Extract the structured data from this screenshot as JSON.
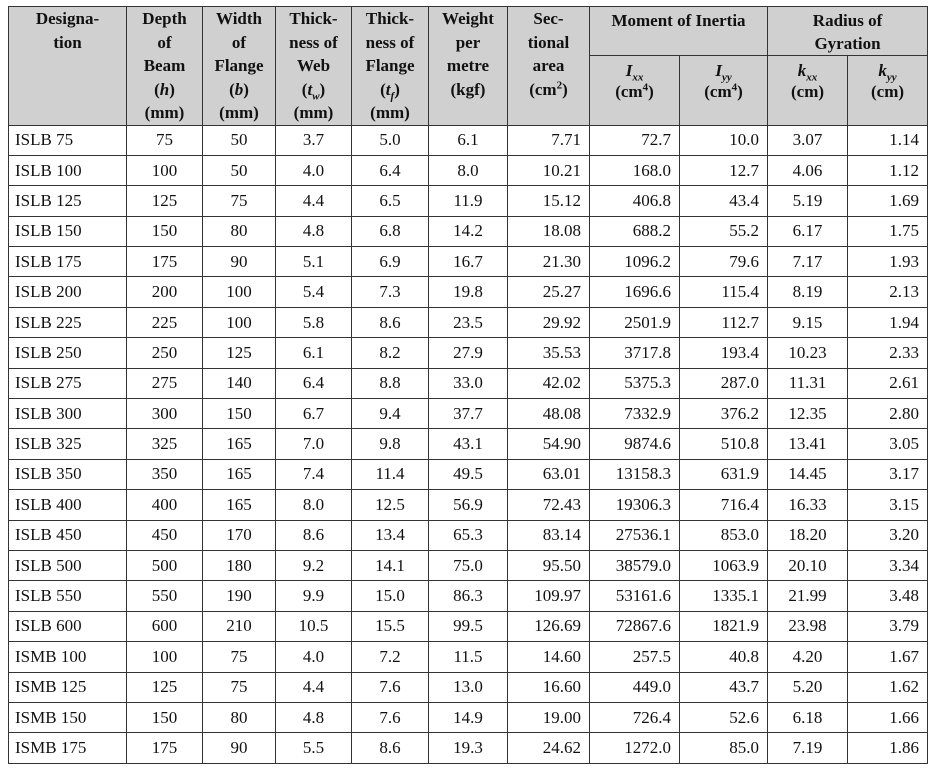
{
  "header": {
    "designation": [
      "Designa-",
      "tion"
    ],
    "depth": [
      "Depth",
      "of",
      "Beam"
    ],
    "depth_sym": "h",
    "depth_unit": "(mm)",
    "width": [
      "Width",
      "of",
      "Flange"
    ],
    "width_sym": "b",
    "width_unit": "(mm)",
    "web": [
      "Thick-",
      "ness of",
      "Web"
    ],
    "web_sym": "t",
    "web_sub": "w",
    "web_unit": "(mm)",
    "flange": [
      "Thick-",
      "ness of",
      "Flange"
    ],
    "flange_sym": "t",
    "flange_sub": "f",
    "flange_unit": "(mm)",
    "weight": [
      "Weight",
      "per",
      "metre",
      "(kgf)"
    ],
    "area": [
      "Sec-",
      "tional",
      "area"
    ],
    "area_unit": "(cm",
    "area_exp": "2",
    "moment_title": "Moment of Inertia",
    "ixx_sym": "I",
    "ixx_sub": "xx",
    "iyy_sym": "I",
    "iyy_sub": "yy",
    "moment_unit": "(cm",
    "moment_exp": "4",
    "radius_title": [
      "Radius of",
      "Gyration"
    ],
    "kxx_sym": "k",
    "kxx_sub": "xx",
    "kyy_sym": "k",
    "kyy_sub": "yy",
    "radius_unit": "(cm)"
  },
  "rows": [
    [
      "ISLB 75",
      "75",
      "50",
      "3.7",
      "5.0",
      "6.1",
      "7.71",
      "72.7",
      "10.0",
      "3.07",
      "1.14"
    ],
    [
      "ISLB 100",
      "100",
      "50",
      "4.0",
      "6.4",
      "8.0",
      "10.21",
      "168.0",
      "12.7",
      "4.06",
      "1.12"
    ],
    [
      "ISLB 125",
      "125",
      "75",
      "4.4",
      "6.5",
      "11.9",
      "15.12",
      "406.8",
      "43.4",
      "5.19",
      "1.69"
    ],
    [
      "ISLB 150",
      "150",
      "80",
      "4.8",
      "6.8",
      "14.2",
      "18.08",
      "688.2",
      "55.2",
      "6.17",
      "1.75"
    ],
    [
      "ISLB 175",
      "175",
      "90",
      "5.1",
      "6.9",
      "16.7",
      "21.30",
      "1096.2",
      "79.6",
      "7.17",
      "1.93"
    ],
    [
      "ISLB 200",
      "200",
      "100",
      "5.4",
      "7.3",
      "19.8",
      "25.27",
      "1696.6",
      "115.4",
      "8.19",
      "2.13"
    ],
    [
      "ISLB 225",
      "225",
      "100",
      "5.8",
      "8.6",
      "23.5",
      "29.92",
      "2501.9",
      "112.7",
      "9.15",
      "1.94"
    ],
    [
      "ISLB 250",
      "250",
      "125",
      "6.1",
      "8.2",
      "27.9",
      "35.53",
      "3717.8",
      "193.4",
      "10.23",
      "2.33"
    ],
    [
      "ISLB 275",
      "275",
      "140",
      "6.4",
      "8.8",
      "33.0",
      "42.02",
      "5375.3",
      "287.0",
      "11.31",
      "2.61"
    ],
    [
      "ISLB 300",
      "300",
      "150",
      "6.7",
      "9.4",
      "37.7",
      "48.08",
      "7332.9",
      "376.2",
      "12.35",
      "2.80"
    ],
    [
      "ISLB 325",
      "325",
      "165",
      "7.0",
      "9.8",
      "43.1",
      "54.90",
      "9874.6",
      "510.8",
      "13.41",
      "3.05"
    ],
    [
      "ISLB 350",
      "350",
      "165",
      "7.4",
      "11.4",
      "49.5",
      "63.01",
      "13158.3",
      "631.9",
      "14.45",
      "3.17"
    ],
    [
      "ISLB 400",
      "400",
      "165",
      "8.0",
      "12.5",
      "56.9",
      "72.43",
      "19306.3",
      "716.4",
      "16.33",
      "3.15"
    ],
    [
      "ISLB 450",
      "450",
      "170",
      "8.6",
      "13.4",
      "65.3",
      "83.14",
      "27536.1",
      "853.0",
      "18.20",
      "3.20"
    ],
    [
      "ISLB 500",
      "500",
      "180",
      "9.2",
      "14.1",
      "75.0",
      "95.50",
      "38579.0",
      "1063.9",
      "20.10",
      "3.34"
    ],
    [
      "ISLB 550",
      "550",
      "190",
      "9.9",
      "15.0",
      "86.3",
      "109.97",
      "53161.6",
      "1335.1",
      "21.99",
      "3.48"
    ],
    [
      "ISLB 600",
      "600",
      "210",
      "10.5",
      "15.5",
      "99.5",
      "126.69",
      "72867.6",
      "1821.9",
      "23.98",
      "3.79"
    ],
    [
      "ISMB 100",
      "100",
      "75",
      "4.0",
      "7.2",
      "11.5",
      "14.60",
      "257.5",
      "40.8",
      "4.20",
      "1.67"
    ],
    [
      "ISMB 125",
      "125",
      "75",
      "4.4",
      "7.6",
      "13.0",
      "16.60",
      "449.0",
      "43.7",
      "5.20",
      "1.62"
    ],
    [
      "ISMB 150",
      "150",
      "80",
      "4.8",
      "7.6",
      "14.9",
      "19.00",
      "726.4",
      "52.6",
      "6.18",
      "1.66"
    ],
    [
      "ISMB 175",
      "175",
      "90",
      "5.5",
      "8.6",
      "19.3",
      "24.62",
      "1272.0",
      "85.0",
      "7.19",
      "1.86"
    ]
  ]
}
